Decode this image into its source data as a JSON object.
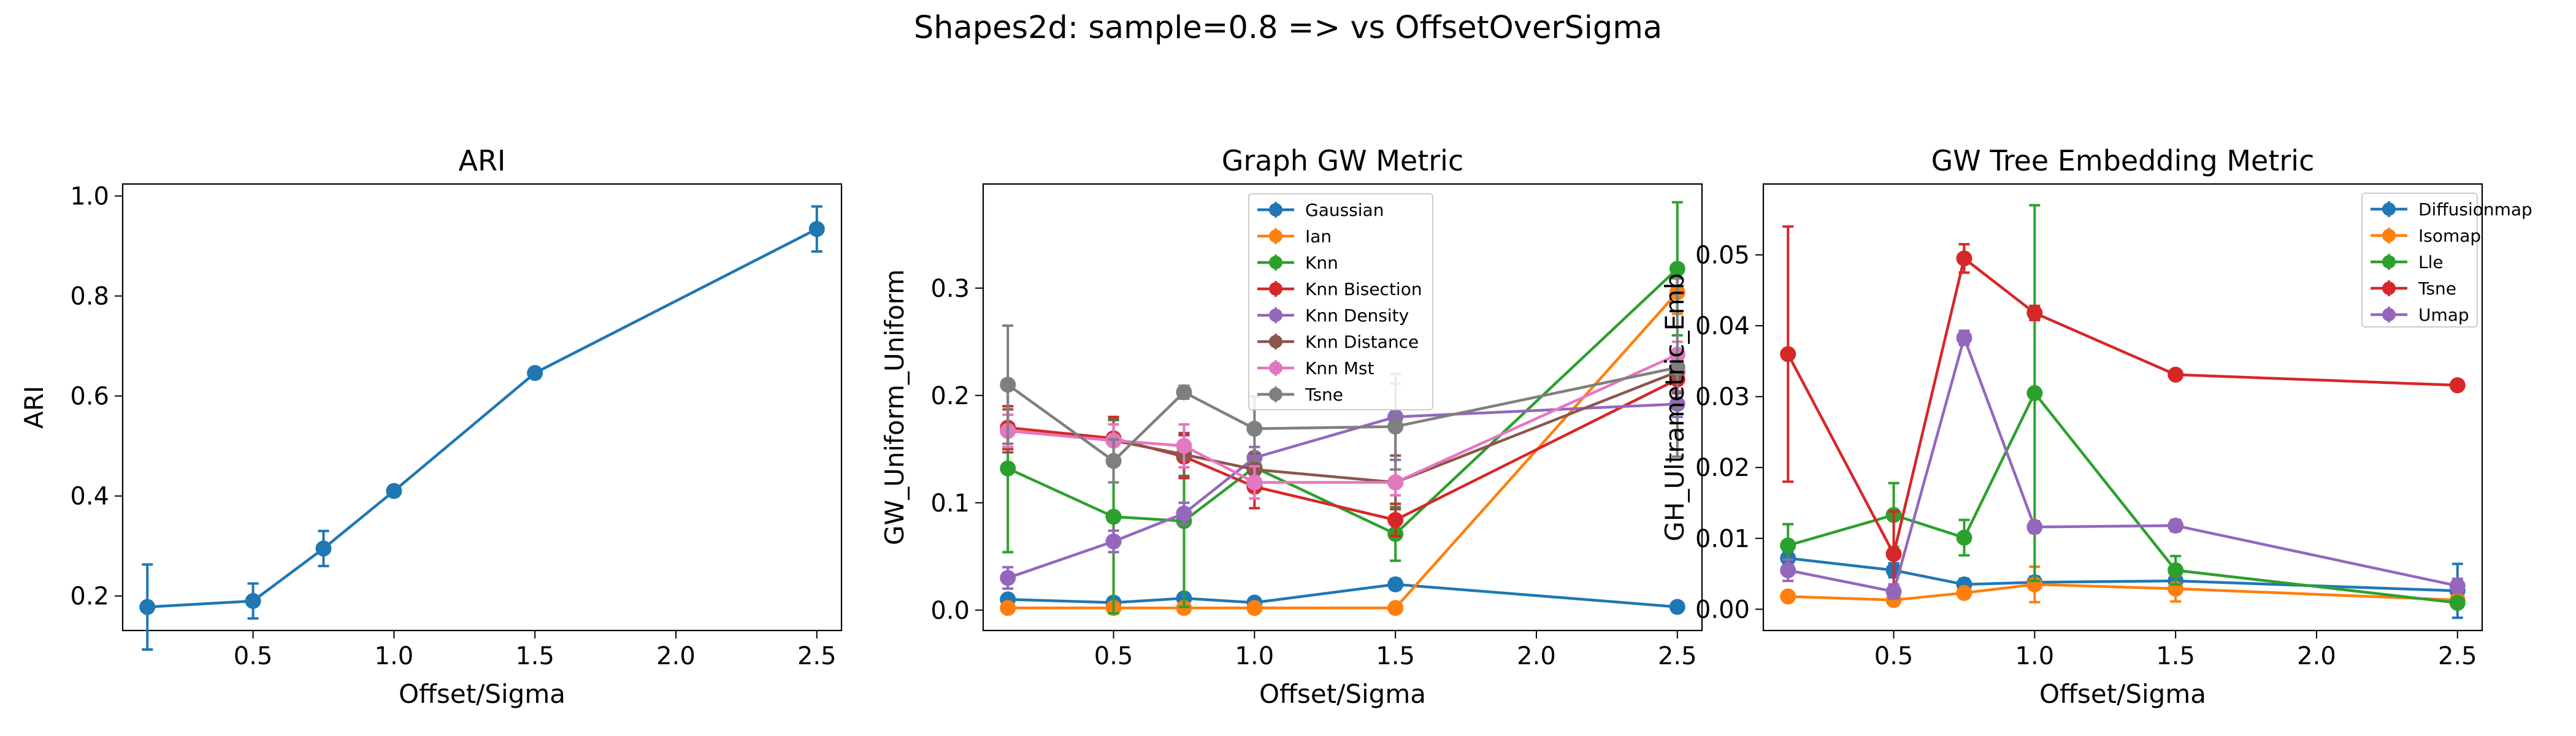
{
  "figure": {
    "suptitle": "Shapes2d: sample=0.8 => vs OffsetOverSigma"
  },
  "colors": {
    "blue": "#1f77b4",
    "orange": "#ff7f0e",
    "green": "#2ca02c",
    "red": "#d62728",
    "purple": "#9467bd",
    "brown": "#8c564b",
    "pink": "#e377c2",
    "gray": "#7f7f7f"
  },
  "chart_data": [
    {
      "type": "line",
      "title": "ARI",
      "xlabel": "Offset/Sigma",
      "ylabel": "ARI",
      "xlim": [
        0.0375,
        2.5875
      ],
      "ylim": [
        0.131,
        1.024
      ],
      "xticks": [
        "0.5",
        "1.0",
        "1.5",
        "2.0",
        "2.5"
      ],
      "yticks": [
        "0.2",
        "0.4",
        "0.6",
        "0.8",
        "1.0"
      ],
      "legend": null,
      "x": [
        0.125,
        0.5,
        0.75,
        1.0,
        1.5,
        2.5
      ],
      "series": [
        {
          "name": "",
          "color": "#1f77b4",
          "values": [
            0.178,
            0.19,
            0.295,
            0.41,
            0.646,
            0.934
          ],
          "err": [
            0.085,
            0.035,
            0.035,
            0.01,
            0.01,
            0.045
          ]
        }
      ]
    },
    {
      "type": "line",
      "title": "Graph GW Metric",
      "xlabel": "Offset/Sigma",
      "ylabel": "GW_Uniform_Uniform",
      "xlim": [
        0.0375,
        2.5875
      ],
      "ylim": [
        -0.019,
        0.397
      ],
      "xticks": [
        "0.5",
        "1.0",
        "1.5",
        "2.0",
        "2.5"
      ],
      "yticks": [
        "0.0",
        "0.1",
        "0.2",
        "0.3"
      ],
      "legend": "upper-center",
      "x": [
        0.125,
        0.5,
        0.75,
        1.0,
        1.5,
        2.5
      ],
      "series": [
        {
          "name": "Gaussian",
          "color": "#1f77b4",
          "values": [
            0.01,
            0.007,
            0.011,
            0.007,
            0.024,
            0.003
          ],
          "err": [
            0.003,
            0.003,
            0.003,
            0.003,
            0.005,
            0.002
          ]
        },
        {
          "name": "Ian",
          "color": "#ff7f0e",
          "values": [
            0.002,
            0.002,
            0.002,
            0.002,
            0.002,
            0.296
          ],
          "err": [
            0.001,
            0.001,
            0.001,
            0.001,
            0.001,
            0.02
          ]
        },
        {
          "name": "Knn",
          "color": "#2ca02c",
          "values": [
            0.132,
            0.087,
            0.083,
            0.133,
            0.071,
            0.318
          ],
          "err": [
            0.078,
            0.09,
            0.08,
            0.01,
            0.025,
            0.062
          ]
        },
        {
          "name": "Knn Bisection",
          "color": "#d62728",
          "values": [
            0.17,
            0.16,
            0.143,
            0.115,
            0.084,
            0.215
          ],
          "err": [
            0.02,
            0.02,
            0.02,
            0.02,
            0.015,
            0.02
          ]
        },
        {
          "name": "Knn Density",
          "color": "#9467bd",
          "values": [
            0.03,
            0.064,
            0.09,
            0.142,
            0.18,
            0.192
          ],
          "err": [
            0.01,
            0.01,
            0.01,
            0.01,
            0.04,
            0.012
          ]
        },
        {
          "name": "Knn Distance",
          "color": "#8c564b",
          "values": [
            0.167,
            0.158,
            0.145,
            0.131,
            0.119,
            0.222
          ],
          "err": [
            0.02,
            0.02,
            0.02,
            0.015,
            0.025,
            0.02
          ]
        },
        {
          "name": "Knn Mst",
          "color": "#e377c2",
          "values": [
            0.167,
            0.158,
            0.153,
            0.119,
            0.119,
            0.238
          ],
          "err": [
            0.015,
            0.015,
            0.02,
            0.015,
            0.012,
            0.012
          ]
        },
        {
          "name": "Tsne",
          "color": "#7f7f7f",
          "values": [
            0.21,
            0.139,
            0.203,
            0.169,
            0.171,
            0.226
          ],
          "err": [
            0.055,
            0.02,
            0.006,
            0.03,
            0.04,
            0.083
          ]
        }
      ]
    },
    {
      "type": "line",
      "title": "GW Tree Embedding Metric",
      "xlabel": "Offset/Sigma",
      "ylabel": "GH_Ultrametric_Emb",
      "xlim": [
        0.0375,
        2.5875
      ],
      "ylim": [
        -0.003,
        0.06
      ],
      "xticks": [
        "0.5",
        "1.0",
        "1.5",
        "2.0",
        "2.5"
      ],
      "yticks": [
        "0.00",
        "0.01",
        "0.02",
        "0.03",
        "0.04",
        "0.05"
      ],
      "legend": "upper-right",
      "x": [
        0.125,
        0.5,
        0.75,
        1.0,
        1.5,
        2.5
      ],
      "series": [
        {
          "name": "Diffusionmap",
          "color": "#1f77b4",
          "values": [
            0.0072,
            0.0055,
            0.0035,
            0.0038,
            0.004,
            0.0026
          ],
          "err": [
            0.001,
            0.001,
            0.0008,
            0.0008,
            0.0008,
            0.0038
          ]
        },
        {
          "name": "Isomap",
          "color": "#ff7f0e",
          "values": [
            0.0018,
            0.0013,
            0.0023,
            0.0035,
            0.0029,
            0.0013
          ],
          "err": [
            0.0005,
            0.0005,
            0.0005,
            0.0025,
            0.0018,
            0.0005
          ]
        },
        {
          "name": "Lle",
          "color": "#2ca02c",
          "values": [
            0.009,
            0.0133,
            0.0101,
            0.0305,
            0.0055,
            0.0009
          ],
          "err": [
            0.003,
            0.0045,
            0.0025,
            0.0265,
            0.002,
            0.0005
          ]
        },
        {
          "name": "Tsne",
          "color": "#d62728",
          "values": [
            0.036,
            0.0078,
            0.0495,
            0.0418,
            0.0331,
            0.0316
          ],
          "err": [
            0.018,
            0.006,
            0.002,
            0.001,
            0.0005,
            0.0005
          ]
        },
        {
          "name": "Umap",
          "color": "#9467bd",
          "values": [
            0.0055,
            0.0025,
            0.0383,
            0.0116,
            0.0118,
            0.0033
          ],
          "err": [
            0.0015,
            0.001,
            0.001,
            0.0008,
            0.0008,
            0.001
          ]
        }
      ]
    }
  ]
}
